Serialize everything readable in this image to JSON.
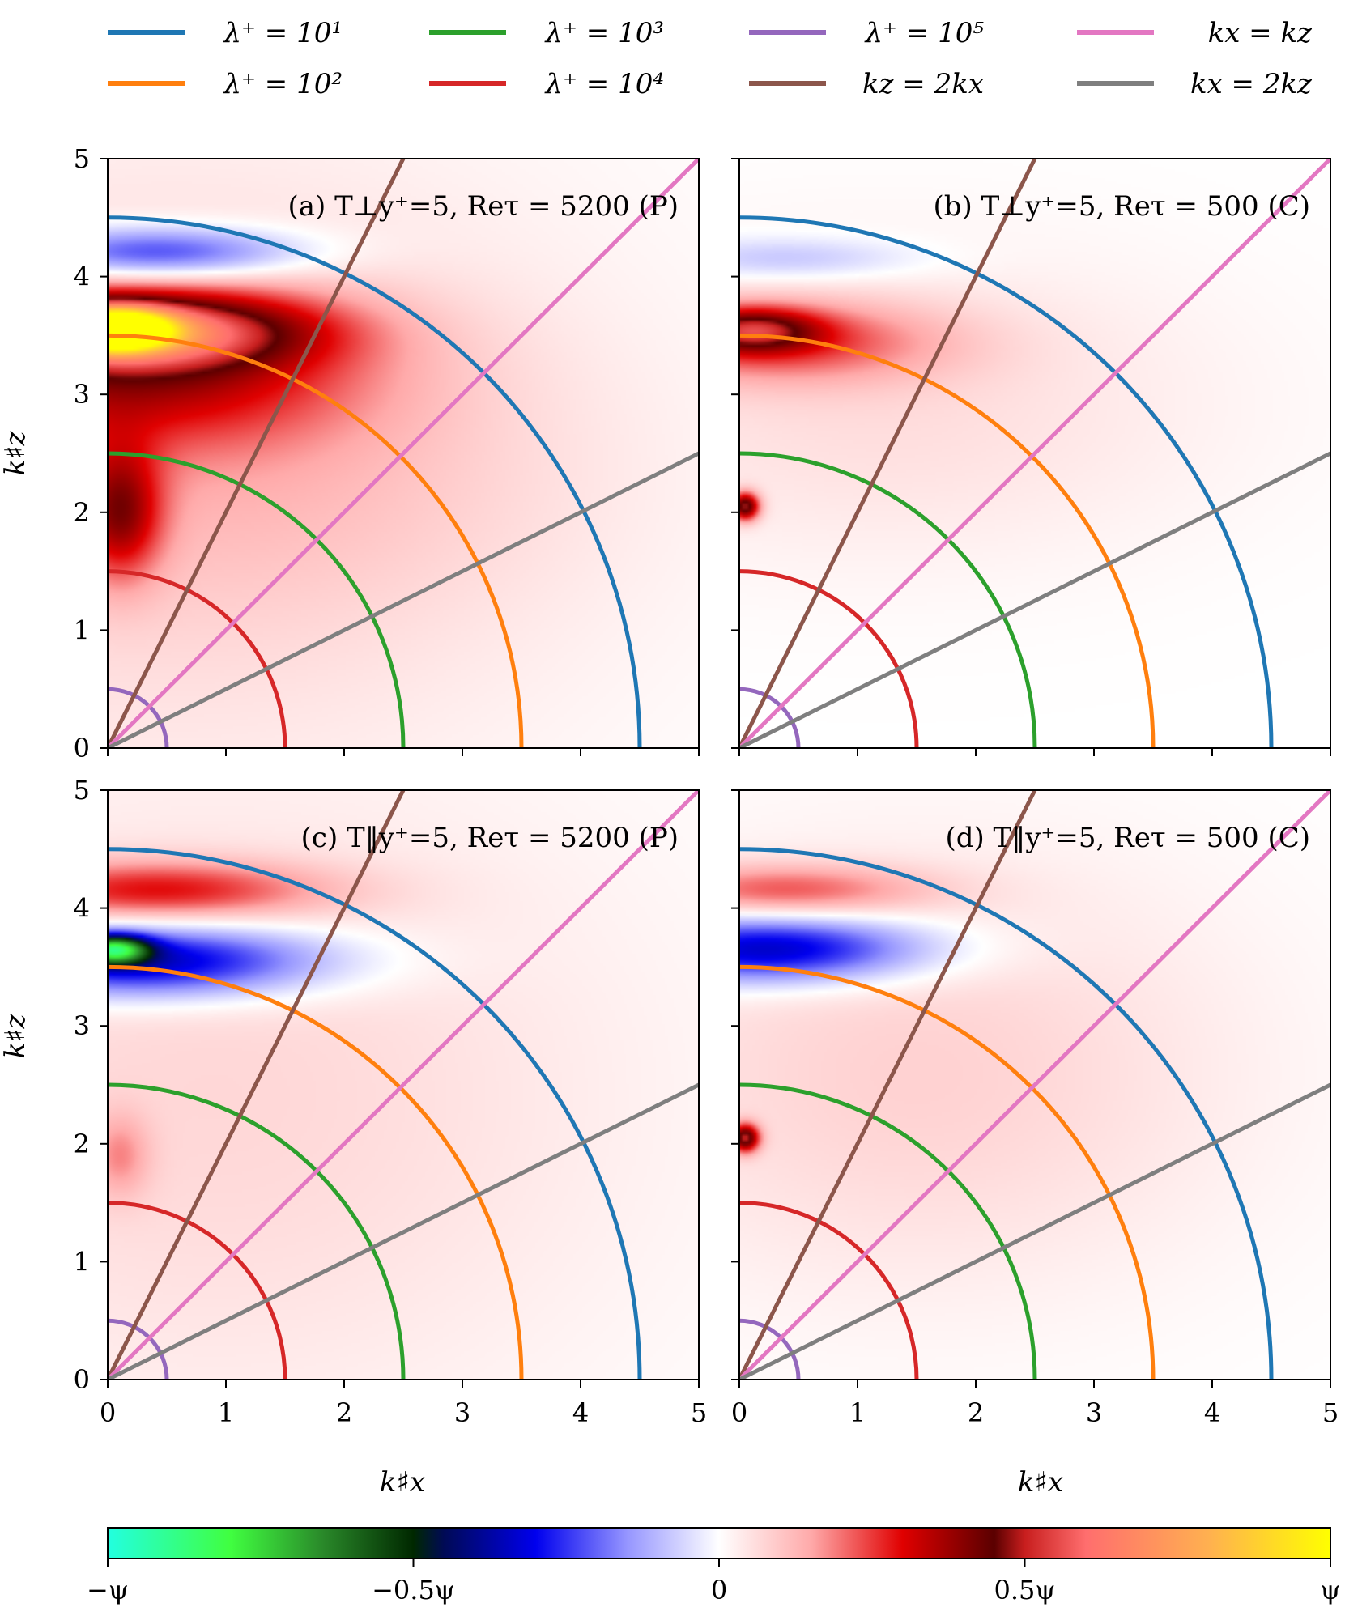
{
  "legend": {
    "entries": [
      {
        "label": "λ⁺ = 10¹",
        "color": "#1f77b4"
      },
      {
        "label": "λ⁺ = 10³",
        "color": "#2ca02c"
      },
      {
        "label": "λ⁺ = 10⁵",
        "color": "#9467bd"
      },
      {
        "label": "kx = kz",
        "color": "#e377c2"
      },
      {
        "label": "λ⁺ = 10²",
        "color": "#ff7f0e"
      },
      {
        "label": "λ⁺ = 10⁴",
        "color": "#d62728"
      },
      {
        "label": "kz = 2kx",
        "color": "#8c564b"
      },
      {
        "label": "kx = 2kz",
        "color": "#7f7f7f"
      }
    ]
  },
  "axes": {
    "xlabel": "k♯x",
    "ylabel": "k♯z",
    "xticks": [
      "0",
      "1",
      "2",
      "3",
      "4",
      "5"
    ],
    "yticks": [
      "0",
      "1",
      "2",
      "3",
      "4",
      "5"
    ]
  },
  "colorbar": {
    "ticks": [
      "−ψ",
      "−0.5ψ",
      "0",
      "0.5ψ",
      "ψ"
    ],
    "colors": [
      "#22ffe0",
      "#40ff40",
      "#2a8a2a",
      "#004400",
      "#000a55",
      "#0000ee",
      "#ffffff",
      "#ff9a9a",
      "#e00000",
      "#5a0000",
      "#ff6a6a",
      "#ffb050",
      "#ffff00"
    ]
  },
  "chart_data": [
    {
      "type": "heatmap",
      "panel_label": "(a) T⊥y⁺=5, Reτ = 5200 (P)",
      "xlim": [
        0,
        5
      ],
      "ylim": [
        0,
        5
      ],
      "reference_arcs": [
        {
          "name": "λ⁺ = 10¹",
          "radius": 4.5
        },
        {
          "name": "λ⁺ = 10²",
          "radius": 3.5
        },
        {
          "name": "λ⁺ = 10³",
          "radius": 2.5
        },
        {
          "name": "λ⁺ = 10⁴",
          "radius": 1.5
        },
        {
          "name": "λ⁺ = 10⁵",
          "radius": 0.5
        }
      ],
      "reference_lines": [
        {
          "name": "kz = 2kx",
          "slope": 2
        },
        {
          "name": "kx = kz",
          "slope": 1
        },
        {
          "name": "kx = 2kz",
          "slope": 0.5
        }
      ],
      "blobs": [
        {
          "x": 0.55,
          "y": 2.4,
          "rx": 3.6,
          "ry": 2.8,
          "value": 0.08
        },
        {
          "x": 0.2,
          "y": 3.25,
          "rx": 1.9,
          "ry": 0.65,
          "value": 0.3
        },
        {
          "x": 0.25,
          "y": 3.55,
          "rx": 1.4,
          "ry": 0.3,
          "value": 0.42
        },
        {
          "x": 0.05,
          "y": 3.55,
          "rx": 0.45,
          "ry": 0.17,
          "value": 0.9
        },
        {
          "x": 0.1,
          "y": 2.0,
          "rx": 0.35,
          "ry": 0.55,
          "value": 0.3
        },
        {
          "x": 0.4,
          "y": 4.2,
          "rx": 1.2,
          "ry": 0.22,
          "value": -0.3
        },
        {
          "x": 1.2,
          "y": 2.3,
          "rx": 2.6,
          "ry": 1.1,
          "value": 0.05
        }
      ]
    },
    {
      "type": "heatmap",
      "panel_label": "(b) T⊥y⁺=5, Reτ = 500 (C)",
      "xlim": [
        0,
        5
      ],
      "ylim": [
        0,
        5
      ],
      "reference_arcs": [
        {
          "name": "λ⁺ = 10¹",
          "radius": 4.5
        },
        {
          "name": "λ⁺ = 10²",
          "radius": 3.5
        },
        {
          "name": "λ⁺ = 10³",
          "radius": 2.5
        },
        {
          "name": "λ⁺ = 10⁴",
          "radius": 1.5
        },
        {
          "name": "λ⁺ = 10⁵",
          "radius": 0.5
        }
      ],
      "reference_lines": [
        {
          "name": "kz = 2kx",
          "slope": 2
        },
        {
          "name": "kx = kz",
          "slope": 1
        },
        {
          "name": "kx = 2kz",
          "slope": 0.5
        }
      ],
      "blobs": [
        {
          "x": 1.2,
          "y": 2.9,
          "rx": 2.8,
          "ry": 1.3,
          "value": 0.06
        },
        {
          "x": 0.3,
          "y": 3.45,
          "rx": 1.4,
          "ry": 0.35,
          "value": 0.22
        },
        {
          "x": 0.1,
          "y": 3.55,
          "rx": 0.55,
          "ry": 0.18,
          "value": 0.32
        },
        {
          "x": 0.05,
          "y": 2.05,
          "rx": 0.12,
          "ry": 0.12,
          "value": 0.45
        },
        {
          "x": 0.4,
          "y": 4.15,
          "rx": 1.1,
          "ry": 0.18,
          "value": -0.1
        }
      ]
    },
    {
      "type": "heatmap",
      "panel_label": "(c) T‖y⁺=5, Reτ = 5200 (P)",
      "xlim": [
        0,
        5
      ],
      "ylim": [
        0,
        5
      ],
      "reference_arcs": [
        {
          "name": "λ⁺ = 10¹",
          "radius": 4.5
        },
        {
          "name": "λ⁺ = 10²",
          "radius": 3.5
        },
        {
          "name": "λ⁺ = 10³",
          "radius": 2.5
        },
        {
          "name": "λ⁺ = 10⁴",
          "radius": 1.5
        },
        {
          "name": "λ⁺ = 10⁵",
          "radius": 0.5
        }
      ],
      "reference_lines": [
        {
          "name": "kz = 2kx",
          "slope": 2
        },
        {
          "name": "kx = kz",
          "slope": 1
        },
        {
          "name": "kx = 2kz",
          "slope": 0.5
        }
      ],
      "blobs": [
        {
          "x": 0.9,
          "y": 2.4,
          "rx": 3.6,
          "ry": 2.8,
          "value": 0.07
        },
        {
          "x": 0.4,
          "y": 4.15,
          "rx": 1.4,
          "ry": 0.25,
          "value": 0.25
        },
        {
          "x": 0.3,
          "y": 3.55,
          "rx": 1.5,
          "ry": 0.3,
          "value": -0.4
        },
        {
          "x": 0.05,
          "y": 3.65,
          "rx": 0.3,
          "ry": 0.12,
          "value": -0.6
        },
        {
          "x": 0.1,
          "y": 1.9,
          "rx": 0.25,
          "ry": 0.35,
          "value": 0.12
        }
      ]
    },
    {
      "type": "heatmap",
      "panel_label": "(d) T‖y⁺=5, Reτ = 500 (C)",
      "xlim": [
        0,
        5
      ],
      "ylim": [
        0,
        5
      ],
      "reference_arcs": [
        {
          "name": "λ⁺ = 10¹",
          "radius": 4.5
        },
        {
          "name": "λ⁺ = 10²",
          "radius": 3.5
        },
        {
          "name": "λ⁺ = 10³",
          "radius": 2.5
        },
        {
          "name": "λ⁺ = 10⁴",
          "radius": 1.5
        },
        {
          "name": "λ⁺ = 10⁵",
          "radius": 0.5
        }
      ],
      "reference_lines": [
        {
          "name": "kz = 2kx",
          "slope": 2
        },
        {
          "name": "kx = kz",
          "slope": 1
        },
        {
          "name": "kx = 2kz",
          "slope": 0.5
        }
      ],
      "blobs": [
        {
          "x": 1.5,
          "y": 2.6,
          "rx": 2.7,
          "ry": 1.8,
          "value": 0.08
        },
        {
          "x": 0.35,
          "y": 4.15,
          "rx": 1.2,
          "ry": 0.22,
          "value": 0.2
        },
        {
          "x": 0.25,
          "y": 3.65,
          "rx": 1.3,
          "ry": 0.28,
          "value": -0.38
        },
        {
          "x": 0.05,
          "y": 2.05,
          "rx": 0.12,
          "ry": 0.12,
          "value": 0.45
        }
      ]
    }
  ]
}
